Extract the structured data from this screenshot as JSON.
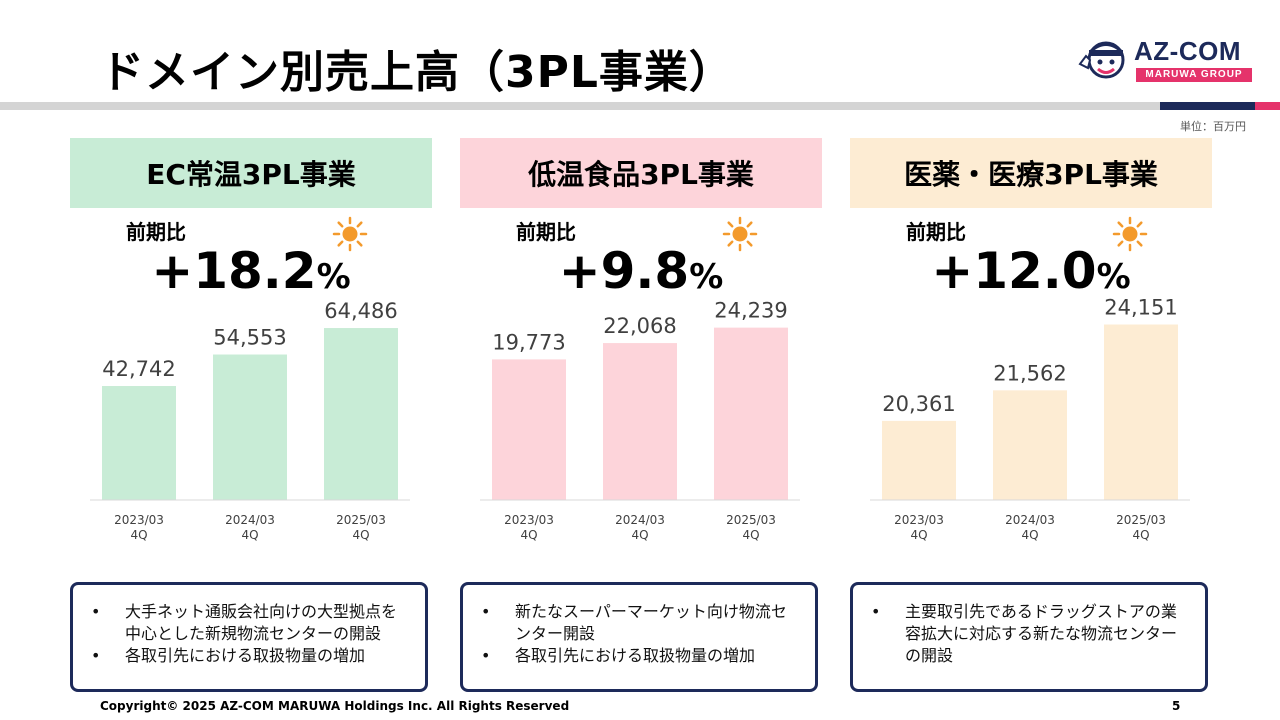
{
  "title": "ドメイン別売上高（3PL事業）",
  "logo": {
    "name": "AZ-COM",
    "sub": "MARUWA GROUP"
  },
  "unit": "単位：百万円",
  "footer": "Copyright© 2025 AZ-COM MARUWA Holdings Inc. All Rights Reserved",
  "page_number": "5",
  "colors": {
    "navy": "#1d2a5a",
    "pink_accent": "#e5336b",
    "sun": "#f39a2c"
  },
  "panels": [
    {
      "header": "EC常温3PL事業",
      "header_color": "#c8ecd6",
      "bar_color": "#c8ecd6",
      "yoy_label": "前期比",
      "yoy_value": "+18.2",
      "yoy_unit": "%",
      "icon": "sun-icon",
      "bullets": [
        "大手ネット通販会社向けの大型拠点を中心とした新規物流センターの開設",
        "各取引先における取扱物量の増加"
      ]
    },
    {
      "header": "低温食品3PL事業",
      "header_color": "#fdd4da",
      "bar_color": "#fdd4da",
      "yoy_label": "前期比",
      "yoy_value": "+9.8",
      "yoy_unit": "%",
      "icon": "sun-icon",
      "bullets": [
        "新たなスーパーマーケット向け物流センター開設",
        "各取引先における取扱物量の増加"
      ]
    },
    {
      "header": "医薬・医療3PL事業",
      "header_color": "#fdecd3",
      "bar_color": "#fdecd3",
      "yoy_label": "前期比",
      "yoy_value": "+12.0",
      "yoy_unit": "%",
      "icon": "sun-icon",
      "bullets": [
        "主要取引先であるドラッグストアの業容拡大に対応する新たな物流センターの開設"
      ]
    }
  ],
  "chart_data": [
    {
      "type": "bar",
      "categories": [
        "2023/03\n4Q",
        "2024/03\n4Q",
        "2025/03\n4Q"
      ],
      "values": [
        42742,
        54553,
        64486
      ],
      "labels": [
        "42,742",
        "54,553",
        "64,486"
      ],
      "title": "",
      "xlabel": "",
      "ylabel": "",
      "ylim": [
        0,
        72000
      ],
      "grid": false
    },
    {
      "type": "bar",
      "categories": [
        "2023/03\n4Q",
        "2024/03\n4Q",
        "2025/03\n4Q"
      ],
      "values": [
        19773,
        22068,
        24239
      ],
      "labels": [
        "19,773",
        "22,068",
        "24,239"
      ],
      "title": "",
      "xlabel": "",
      "ylabel": "",
      "ylim": [
        0,
        27000
      ],
      "grid": false
    },
    {
      "type": "bar",
      "categories": [
        "2023/03\n4Q",
        "2024/03\n4Q",
        "2025/03\n4Q"
      ],
      "values": [
        20361,
        21562,
        24151
      ],
      "labels": [
        "20,361",
        "21,562",
        "24,151"
      ],
      "title": "",
      "xlabel": "",
      "ylabel": "",
      "ylim": [
        17250,
        24800
      ],
      "grid": false
    }
  ]
}
